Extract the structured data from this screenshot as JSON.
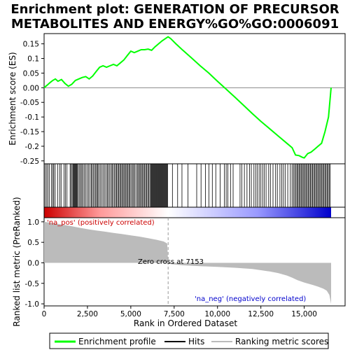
{
  "chart_data": {
    "type": "line",
    "title_lines": [
      "Enrichment plot: GENERATION OF PRECURSOR",
      "METABOLITES AND ENERGY%GO%GO:0006091"
    ],
    "top_panel": {
      "ylabel": "Enrichment score (ES)",
      "ylim": [
        -0.26,
        0.185
      ],
      "yticks": [
        0.15,
        0.1,
        0.05,
        0.0,
        -0.05,
        -0.1,
        -0.15,
        -0.2,
        -0.25
      ],
      "ytick_labels": [
        "0.15",
        "0.1",
        "0.05",
        "0.00",
        "-0.05",
        "-0.1",
        "-0.15",
        "-0.2",
        "-0.25"
      ],
      "series": [
        {
          "name": "Enrichment profile",
          "color": "#00ff00",
          "x": [
            0,
            100,
            200,
            350,
            500,
            650,
            800,
            1000,
            1200,
            1400,
            1600,
            1800,
            2000,
            2200,
            2400,
            2600,
            2800,
            3000,
            3200,
            3400,
            3600,
            3800,
            4000,
            4200,
            4400,
            4600,
            4800,
            5000,
            5200,
            5400,
            5600,
            5800,
            6000,
            6200,
            6400,
            6600,
            6800,
            7000,
            7150,
            7300,
            7600,
            8000,
            8500,
            9000,
            9500,
            10000,
            10500,
            11000,
            11500,
            12000,
            12500,
            13000,
            13500,
            14000,
            14300,
            14500,
            14700,
            14900,
            15000,
            15200,
            15400,
            15600,
            15800,
            16000,
            16200,
            16400,
            16550
          ],
          "y": [
            0.0,
            0.005,
            0.01,
            0.018,
            0.025,
            0.03,
            0.022,
            0.028,
            0.015,
            0.005,
            0.012,
            0.025,
            0.03,
            0.035,
            0.038,
            0.03,
            0.04,
            0.055,
            0.07,
            0.075,
            0.07,
            0.075,
            0.08,
            0.075,
            0.085,
            0.095,
            0.11,
            0.125,
            0.12,
            0.125,
            0.13,
            0.13,
            0.132,
            0.128,
            0.14,
            0.15,
            0.16,
            0.168,
            0.174,
            0.168,
            0.15,
            0.128,
            0.102,
            0.075,
            0.05,
            0.022,
            -0.005,
            -0.032,
            -0.06,
            -0.088,
            -0.115,
            -0.14,
            -0.165,
            -0.19,
            -0.205,
            -0.23,
            -0.232,
            -0.238,
            -0.24,
            -0.225,
            -0.22,
            -0.21,
            -0.2,
            -0.19,
            -0.15,
            -0.1,
            0.0
          ]
        }
      ]
    },
    "hits_panel": {
      "name": "Hits",
      "positions": [
        60,
        150,
        220,
        310,
        420,
        500,
        560,
        640,
        780,
        900,
        980,
        1150,
        1230,
        1320,
        1500,
        1560,
        1620,
        1680,
        1720,
        1760,
        1800,
        1840,
        1880,
        1920,
        1980,
        2050,
        2120,
        2180,
        2250,
        2320,
        2400,
        2480,
        2560,
        2640,
        2720,
        2780,
        2850,
        2920,
        2980,
        3050,
        3100,
        3160,
        3240,
        3320,
        3400,
        3480,
        3560,
        3640,
        3700,
        3780,
        3860,
        3920,
        3980,
        4060,
        4120,
        4180,
        4240,
        4300,
        4360,
        4420,
        4480,
        4540,
        4600,
        4660,
        4720,
        4780,
        4840,
        4900,
        4960,
        5020,
        5100,
        5160,
        5220,
        5300,
        5380,
        5440,
        5500,
        5560,
        5620,
        5680,
        5740,
        5800,
        5860,
        5920,
        5980,
        6040,
        6100,
        6160,
        6200,
        6240,
        6280,
        6320,
        6360,
        6400,
        6440,
        6480,
        6520,
        6560,
        6600,
        6640,
        6680,
        6720,
        6760,
        6800,
        6840,
        6880,
        6920,
        6960,
        7000,
        7040,
        7080,
        7120,
        7400,
        7700,
        7950,
        8300,
        8800,
        9050,
        9300,
        9500,
        9700,
        9900,
        10150,
        10400,
        10500,
        10600,
        10750,
        10900,
        11300,
        11400,
        11550,
        11700,
        11850,
        11950,
        12100,
        12200,
        12300,
        12400,
        12500,
        12600,
        12700,
        12800,
        12950,
        13050,
        13200,
        13350,
        13450,
        13600,
        13700,
        13800,
        13900,
        14050,
        14200,
        14300,
        14380,
        14450,
        14520,
        14580,
        14640,
        14700,
        14760,
        14820,
        14880,
        14940,
        15000,
        15060,
        15120,
        15180,
        15240,
        15300,
        15360,
        15420,
        15480,
        15540,
        15600,
        15660,
        15720,
        15780,
        15840,
        15900,
        15960,
        16020,
        16080,
        16140,
        16200,
        16260,
        16320,
        16380,
        16440,
        16500
      ]
    },
    "rank_bar": {
      "n": 16550,
      "colors": [
        "#cc0000",
        "#ff9999",
        "#ffffff",
        "#9999ff",
        "#0000cc"
      ]
    },
    "bottom_panel": {
      "name": "Ranking metric scores",
      "ylabel": "Ranked list metric (PreRanked)",
      "xlabel": "Rank in Ordered Dataset",
      "ylim": [
        -1.05,
        1.1
      ],
      "yticks": [
        1.0,
        0.5,
        0.0,
        -0.5,
        -1.0
      ],
      "ytick_labels": [
        "1.0",
        "0.5",
        "0.0",
        "-0.5",
        "-1.0"
      ],
      "xlim": [
        0,
        16550
      ],
      "xticks": [
        0,
        2500,
        5000,
        7500,
        10000,
        12500,
        15000
      ],
      "xtick_labels": [
        "0",
        "2,500",
        "5,000",
        "7,500",
        "10,000",
        "12,500",
        "15,000"
      ],
      "x": [
        0,
        300,
        800,
        1500,
        2000,
        2500,
        3000,
        3500,
        4000,
        4500,
        5000,
        5500,
        6000,
        6500,
        6900,
        7100,
        7153,
        7300,
        8000,
        9000,
        10000,
        11000,
        12000,
        12500,
        13000,
        13500,
        14000,
        14300,
        14600,
        15000,
        15500,
        15800,
        16100,
        16300,
        16450,
        16550
      ],
      "y": [
        1.0,
        0.98,
        0.95,
        0.9,
        0.86,
        0.82,
        0.79,
        0.76,
        0.73,
        0.7,
        0.67,
        0.64,
        0.6,
        0.56,
        0.52,
        0.47,
        0.0,
        -0.03,
        -0.06,
        -0.08,
        -0.1,
        -0.12,
        -0.15,
        -0.18,
        -0.21,
        -0.25,
        -0.31,
        -0.36,
        -0.42,
        -0.48,
        -0.54,
        -0.58,
        -0.63,
        -0.68,
        -0.78,
        -1.0
      ],
      "zero_cross_label": "Zero cross at 7153",
      "zero_cross": 7153,
      "pos_label": "'na_pos' (positively correlated)",
      "neg_label": "'na_neg' (negatively correlated)"
    },
    "legend": [
      {
        "label": "Enrichment profile",
        "color": "#00ff00"
      },
      {
        "label": "Hits",
        "color": "#000000"
      },
      {
        "label": "Ranking metric scores",
        "color": "#bbbbbb"
      }
    ]
  }
}
